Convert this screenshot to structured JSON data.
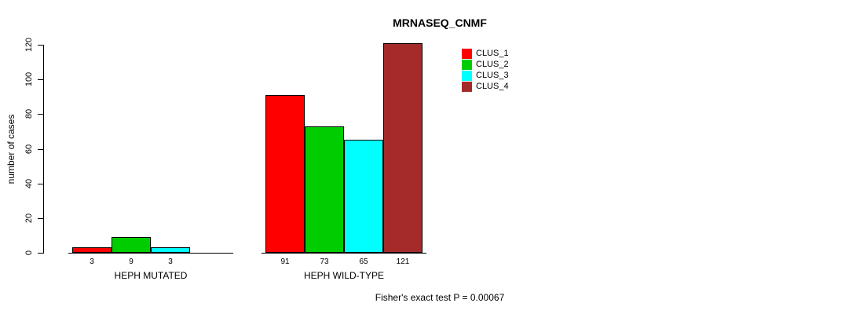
{
  "chart_data": {
    "type": "bar",
    "title": "MRNASEQ_CNMF",
    "ylabel": "number of cases",
    "xlabel": "",
    "ylim": [
      0,
      120
    ],
    "yticks": [
      0,
      20,
      40,
      60,
      80,
      100,
      120
    ],
    "grid": false,
    "legend_position": "top-right-inside",
    "categories": [
      "HEPH MUTATED",
      "HEPH WILD-TYPE"
    ],
    "series": [
      {
        "name": "CLUS_1",
        "color": "#FF0000",
        "values": [
          3,
          91
        ]
      },
      {
        "name": "CLUS_2",
        "color": "#00CD00",
        "values": [
          9,
          73
        ]
      },
      {
        "name": "CLUS_3",
        "color": "#00FFFF",
        "values": [
          3,
          65
        ]
      },
      {
        "name": "CLUS_4",
        "color": "#A52A2A",
        "values": [
          null,
          121
        ]
      }
    ],
    "bar_value_labels": [
      [
        "3",
        "9",
        "3",
        ""
      ],
      [
        "91",
        "73",
        "65",
        "121"
      ]
    ],
    "footnote": "Fisher's exact test P = 0.00067"
  }
}
